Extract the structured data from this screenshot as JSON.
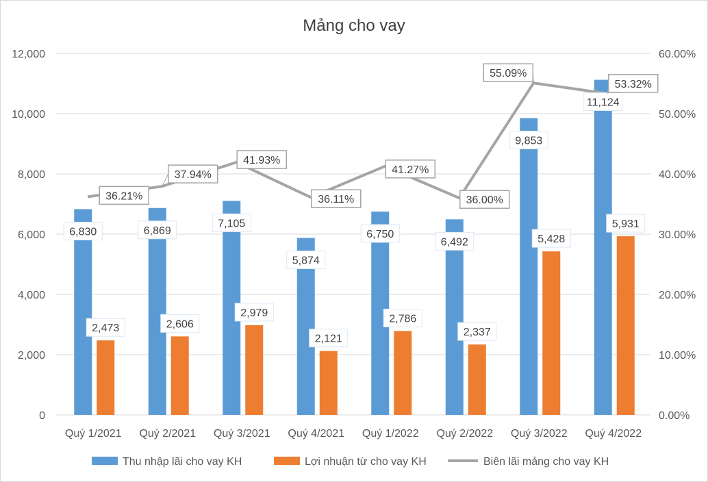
{
  "chart_data": {
    "type": "bar",
    "title": "Mảng cho vay",
    "categories": [
      "Quý 1/2021",
      "Quý 2/2021",
      "Quý 3/2021",
      "Quý 4/2021",
      "Quý 1/2022",
      "Quý 2/2022",
      "Quý 3/2022",
      "Quý 4/2022"
    ],
    "series": [
      {
        "name": "Thu nhập lãi cho vay KH",
        "type": "bar",
        "axis": "left",
        "color": "#5B9BD5",
        "values": [
          6830,
          6869,
          7105,
          5874,
          6750,
          6492,
          9853,
          11124
        ],
        "labels": [
          "6,830",
          "6,869",
          "7,105",
          "5,874",
          "6,750",
          "6,492",
          "9,853",
          "11,124"
        ]
      },
      {
        "name": "Lợi nhuận từ cho vay KH",
        "type": "bar",
        "axis": "left",
        "color": "#ED7D31",
        "values": [
          2473,
          2606,
          2979,
          2121,
          2786,
          2337,
          5428,
          5931
        ],
        "labels": [
          "2,473",
          "2,606",
          "2,979",
          "2,121",
          "2,786",
          "2,337",
          "5,428",
          "5,931"
        ]
      },
      {
        "name": "Biên lãi mảng cho vay KH",
        "type": "line",
        "axis": "right",
        "color": "#A5A5A5",
        "values": [
          36.21,
          37.94,
          41.93,
          36.11,
          41.27,
          36.0,
          55.09,
          53.32
        ],
        "labels": [
          "36.21%",
          "37.94%",
          "41.93%",
          "36.11%",
          "41.27%",
          "36.00%",
          "55.09%",
          "53.32%"
        ]
      }
    ],
    "ylim": [
      0,
      12000
    ],
    "y2lim": [
      0,
      60
    ],
    "y_ticks": [
      "0",
      "2,000",
      "4,000",
      "6,000",
      "8,000",
      "10,000",
      "12,000"
    ],
    "y2_ticks": [
      "0.00%",
      "10.00%",
      "20.00%",
      "30.00%",
      "40.00%",
      "50.00%",
      "60.00%"
    ],
    "grid": true,
    "legend_position": "bottom"
  }
}
